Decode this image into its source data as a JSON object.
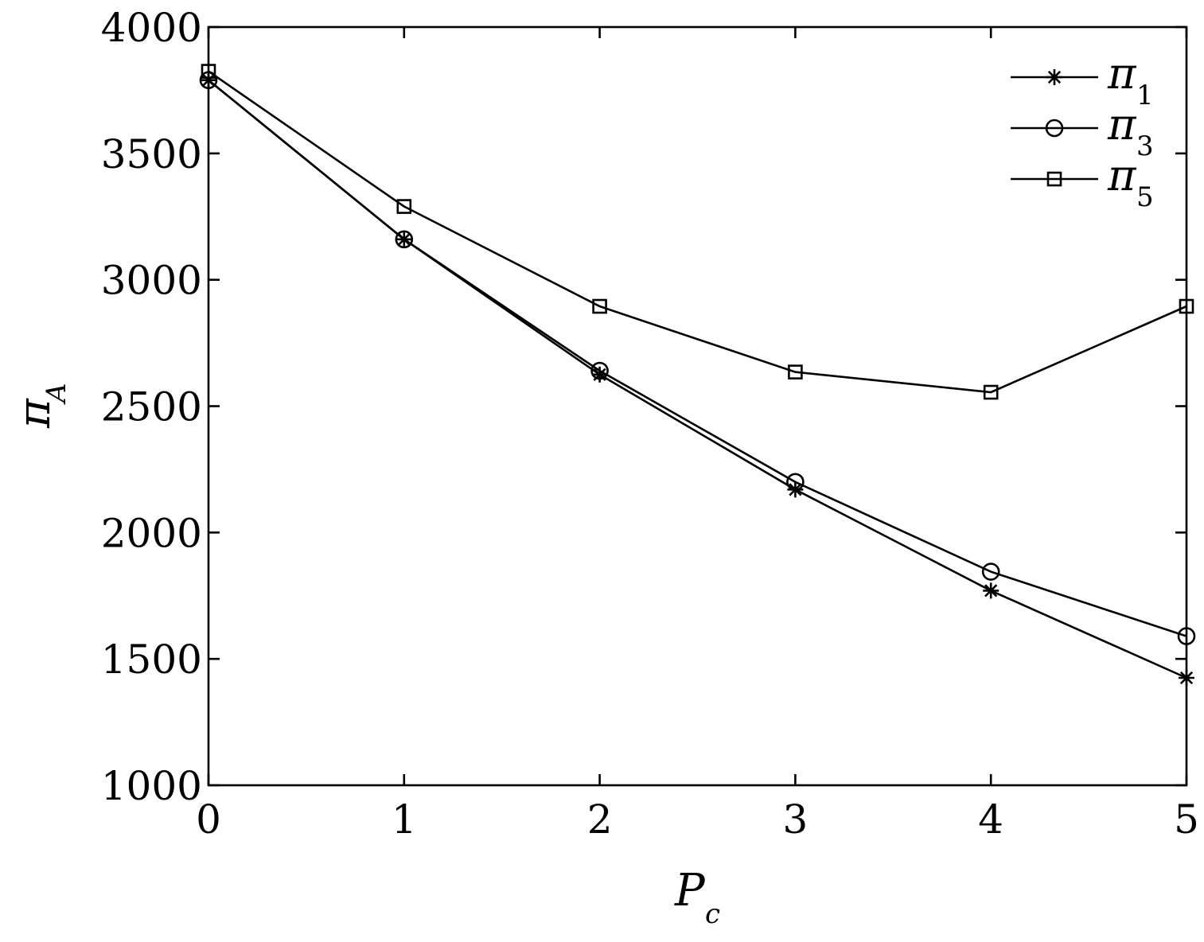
{
  "chart_data": {
    "type": "line",
    "title": "",
    "xlabel": {
      "main": "P",
      "sub": "c"
    },
    "ylabel": {
      "main": "π",
      "sub": "A"
    },
    "xlim": [
      0,
      5
    ],
    "ylim": [
      1000,
      4000
    ],
    "xticks": [
      "0",
      "1",
      "2",
      "3",
      "4",
      "5"
    ],
    "yticks": [
      "1000",
      "1500",
      "2000",
      "2500",
      "3000",
      "3500",
      "4000"
    ],
    "grid": false,
    "legend_position": "top-right",
    "x": [
      0,
      1,
      2,
      3,
      4,
      5
    ],
    "series": [
      {
        "name": "π",
        "sub": "1",
        "marker": "asterisk",
        "values": [
          3790,
          3160,
          2625,
          2170,
          1770,
          1425
        ]
      },
      {
        "name": "π",
        "sub": "3",
        "marker": "circle",
        "values": [
          3790,
          3160,
          2640,
          2200,
          1845,
          1590
        ]
      },
      {
        "name": "π",
        "sub": "5",
        "marker": "square",
        "values": [
          3825,
          3290,
          2895,
          2635,
          2555,
          2895
        ]
      }
    ]
  }
}
